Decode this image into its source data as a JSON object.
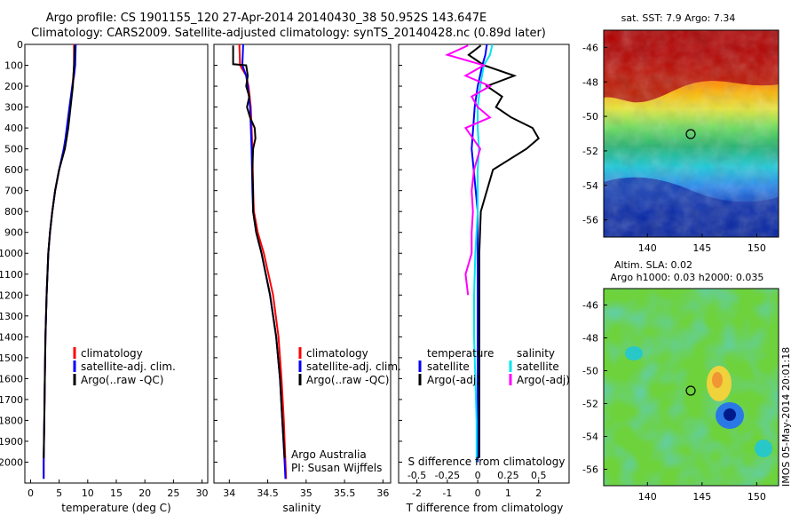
{
  "header": {
    "line1": "Argo profile: CS 1901155_120 27-Apr-2014 20140430_38 50.952S 143.647E",
    "line2": "Climatology: CARS2009. Satellite-adjusted climatology: synTS_20140428.nc (0.89d later)"
  },
  "colors": {
    "climatology": "#ff0000",
    "satellite": "#0000ff",
    "argo": "#000000",
    "sal_satellite": "#00e5ee",
    "sal_argo": "#ff00ff"
  },
  "chart_data": [
    {
      "type": "line",
      "id": "temperature",
      "xlabel": "temperature (deg C)",
      "ylabel": "",
      "xlim": [
        -1,
        31
      ],
      "ylim": [
        2100,
        0
      ],
      "xticks": [
        0,
        5,
        10,
        15,
        20,
        25,
        30
      ],
      "yticks": [
        0,
        100,
        200,
        300,
        400,
        500,
        600,
        700,
        800,
        900,
        1000,
        1100,
        1200,
        1300,
        1400,
        1500,
        1600,
        1700,
        1800,
        1900,
        2000
      ],
      "legend": [
        "climatology",
        "satellite-adj. clim.",
        "Argo(..raw -QC)"
      ],
      "series": [
        {
          "name": "climatology",
          "color": "#ff0000",
          "depth": [
            0,
            100,
            150,
            200,
            300,
            450,
            500,
            600,
            700,
            800,
            900,
            1000,
            1200,
            1400,
            1600,
            1800,
            2000,
            2080
          ],
          "values": [
            7.6,
            7.6,
            7.5,
            7.3,
            6.9,
            6.3,
            5.9,
            5.0,
            4.3,
            3.8,
            3.4,
            3.1,
            2.8,
            2.6,
            2.5,
            2.4,
            2.3,
            2.3
          ]
        },
        {
          "name": "satellite-adj. clim.",
          "color": "#0000ff",
          "depth": [
            0,
            100,
            150,
            200,
            300,
            450,
            500,
            600,
            700,
            800,
            900,
            1000,
            1200,
            1400,
            1600,
            1800,
            2000,
            2080
          ],
          "values": [
            7.9,
            7.8,
            7.6,
            7.3,
            6.8,
            6.1,
            5.8,
            5.0,
            4.3,
            3.8,
            3.4,
            3.1,
            2.8,
            2.6,
            2.5,
            2.4,
            2.3,
            2.3
          ]
        },
        {
          "name": "Argo(..raw -QC)",
          "color": "#000000",
          "depth": [
            5,
            100,
            150,
            200,
            300,
            400,
            500,
            600,
            700,
            800,
            900,
            1000,
            1200,
            1400,
            1600,
            1800,
            1980
          ],
          "values": [
            7.7,
            7.6,
            7.5,
            7.4,
            7.0,
            6.6,
            6.0,
            5.0,
            4.3,
            3.8,
            3.4,
            3.1,
            2.8,
            2.6,
            2.5,
            2.4,
            2.3
          ]
        }
      ]
    },
    {
      "type": "line",
      "id": "salinity",
      "xlabel": "salinity",
      "xlim": [
        33.8,
        36.1
      ],
      "ylim": [
        2100,
        0
      ],
      "xticks": [
        34,
        34.5,
        35,
        35.5,
        36
      ],
      "xtick_labels": [
        "34",
        "34.5",
        "35",
        "35.5",
        "36"
      ],
      "legend": [
        "climatology",
        "satellite-adj. clim.",
        "Argo(..raw -QC)"
      ],
      "annotation": [
        "Argo Australia",
        "PI: Susan Wijffels"
      ],
      "series": [
        {
          "name": "climatology",
          "color": "#ff0000",
          "depth": [
            0,
            100,
            150,
            200,
            300,
            500,
            700,
            800,
            900,
            1000,
            1200,
            1400,
            1600,
            1800,
            2000,
            2080
          ],
          "values": [
            34.13,
            34.14,
            34.22,
            34.25,
            34.28,
            34.3,
            34.31,
            34.32,
            34.37,
            34.45,
            34.57,
            34.64,
            34.68,
            34.71,
            34.73,
            34.74
          ]
        },
        {
          "name": "satellite-adj. clim.",
          "color": "#0000ff",
          "depth": [
            0,
            100,
            150,
            200,
            300,
            500,
            700,
            800,
            900,
            1000,
            1200,
            1400,
            1600,
            1800,
            2000,
            2080
          ],
          "values": [
            34.18,
            34.17,
            34.22,
            34.24,
            34.27,
            34.29,
            34.3,
            34.31,
            34.35,
            34.42,
            34.53,
            34.61,
            34.66,
            34.69,
            34.72,
            34.73
          ]
        },
        {
          "name": "Argo(..raw -QC)",
          "color": "#000000",
          "depth": [
            5,
            95,
            100,
            150,
            200,
            250,
            300,
            350,
            400,
            450,
            500,
            600,
            700,
            800,
            900,
            1000,
            1200,
            1400,
            1600,
            1800,
            1980
          ],
          "values": [
            34.05,
            34.05,
            34.22,
            34.24,
            34.22,
            34.26,
            34.23,
            34.27,
            34.33,
            34.34,
            34.31,
            34.3,
            34.31,
            34.31,
            34.35,
            34.42,
            34.53,
            34.61,
            34.66,
            34.69,
            34.72
          ]
        }
      ]
    },
    {
      "type": "line",
      "id": "differences",
      "xlabel": "T difference from climatology",
      "x2label": "S difference from climatology",
      "xlim": [
        -2.6,
        3.0
      ],
      "ylim": [
        2100,
        0
      ],
      "xticks": [
        -2,
        -1,
        0,
        1,
        2
      ],
      "x2ticks": [
        "-0.5",
        "-0.25",
        "0",
        "0.25",
        "0.5"
      ],
      "legend_temperature": {
        "title": "temperature",
        "items": [
          "satellite",
          "Argo(-adj)"
        ]
      },
      "legend_salinity": {
        "title": "salinity",
        "items": [
          "satellite",
          "Argo(-adj)"
        ]
      },
      "series": [
        {
          "name": "T satellite",
          "color": "#0000ff",
          "depth": [
            0,
            50,
            100,
            200,
            300,
            500,
            800,
            1200,
            1600,
            2000
          ],
          "values": [
            0.3,
            0.25,
            0.15,
            0.0,
            -0.1,
            -0.2,
            0.0,
            0.0,
            0.0,
            0.0
          ]
        },
        {
          "name": "T Argo(-adj)",
          "color": "#000000",
          "depth": [
            5,
            50,
            100,
            150,
            200,
            250,
            300,
            350,
            400,
            450,
            500,
            600,
            800,
            1000,
            1400,
            1800,
            1980
          ],
          "values": [
            0.1,
            -0.3,
            0.2,
            1.2,
            0.3,
            0.8,
            0.6,
            1.1,
            1.8,
            2.0,
            1.6,
            0.5,
            0.1,
            0.05,
            0.05,
            0.05,
            0.05
          ]
        },
        {
          "name": "S satellite",
          "color": "#00e5ee",
          "depth": [
            0,
            50,
            100,
            200,
            300,
            400,
            500,
            600,
            800,
            1000,
            1200,
            1400,
            1600,
            1800,
            2000
          ],
          "values": [
            0.12,
            0.1,
            0.05,
            0.02,
            0.0,
            0.0,
            0.01,
            0.0,
            0.0,
            -0.02,
            -0.03,
            -0.03,
            -0.02,
            -0.01,
            -0.01
          ]
        },
        {
          "name": "S Argo(-adj)",
          "color": "#ff00ff",
          "depth": [
            5,
            50,
            100,
            150,
            200,
            250,
            300,
            350,
            400,
            500,
            600,
            700,
            800,
            900,
            1000,
            1100,
            1200
          ],
          "values": [
            -0.08,
            -0.25,
            0.05,
            -0.1,
            0.1,
            -0.05,
            0.0,
            0.1,
            -0.1,
            0.02,
            -0.03,
            -0.05,
            -0.04,
            -0.05,
            -0.05,
            -0.1,
            -0.08
          ]
        }
      ]
    },
    {
      "type": "heatmap",
      "id": "sst-map",
      "title": "sat. SST: 7.9 Argo: 7.34",
      "xlim": [
        136,
        152
      ],
      "ylim": [
        -57,
        -45
      ],
      "xticks": [
        140,
        145,
        150
      ],
      "yticks": [
        -46,
        -48,
        -50,
        -52,
        -54,
        -56
      ],
      "marker": {
        "lon": 143.6,
        "lat": -51.0
      }
    },
    {
      "type": "heatmap",
      "id": "sla-map",
      "title_line1": "Altim. SLA: 0.02",
      "title_line2": "Argo h1000: 0.03 h2000: 0.035",
      "xlim": [
        136,
        152
      ],
      "ylim": [
        -57,
        -45
      ],
      "xticks": [
        140,
        145,
        150
      ],
      "yticks": [
        -46,
        -48,
        -50,
        -52,
        -54,
        -56
      ],
      "marker": {
        "lon": 143.6,
        "lat": -51.0
      }
    }
  ],
  "footer_text": "IMOS 05-May-2014 20:01:18"
}
